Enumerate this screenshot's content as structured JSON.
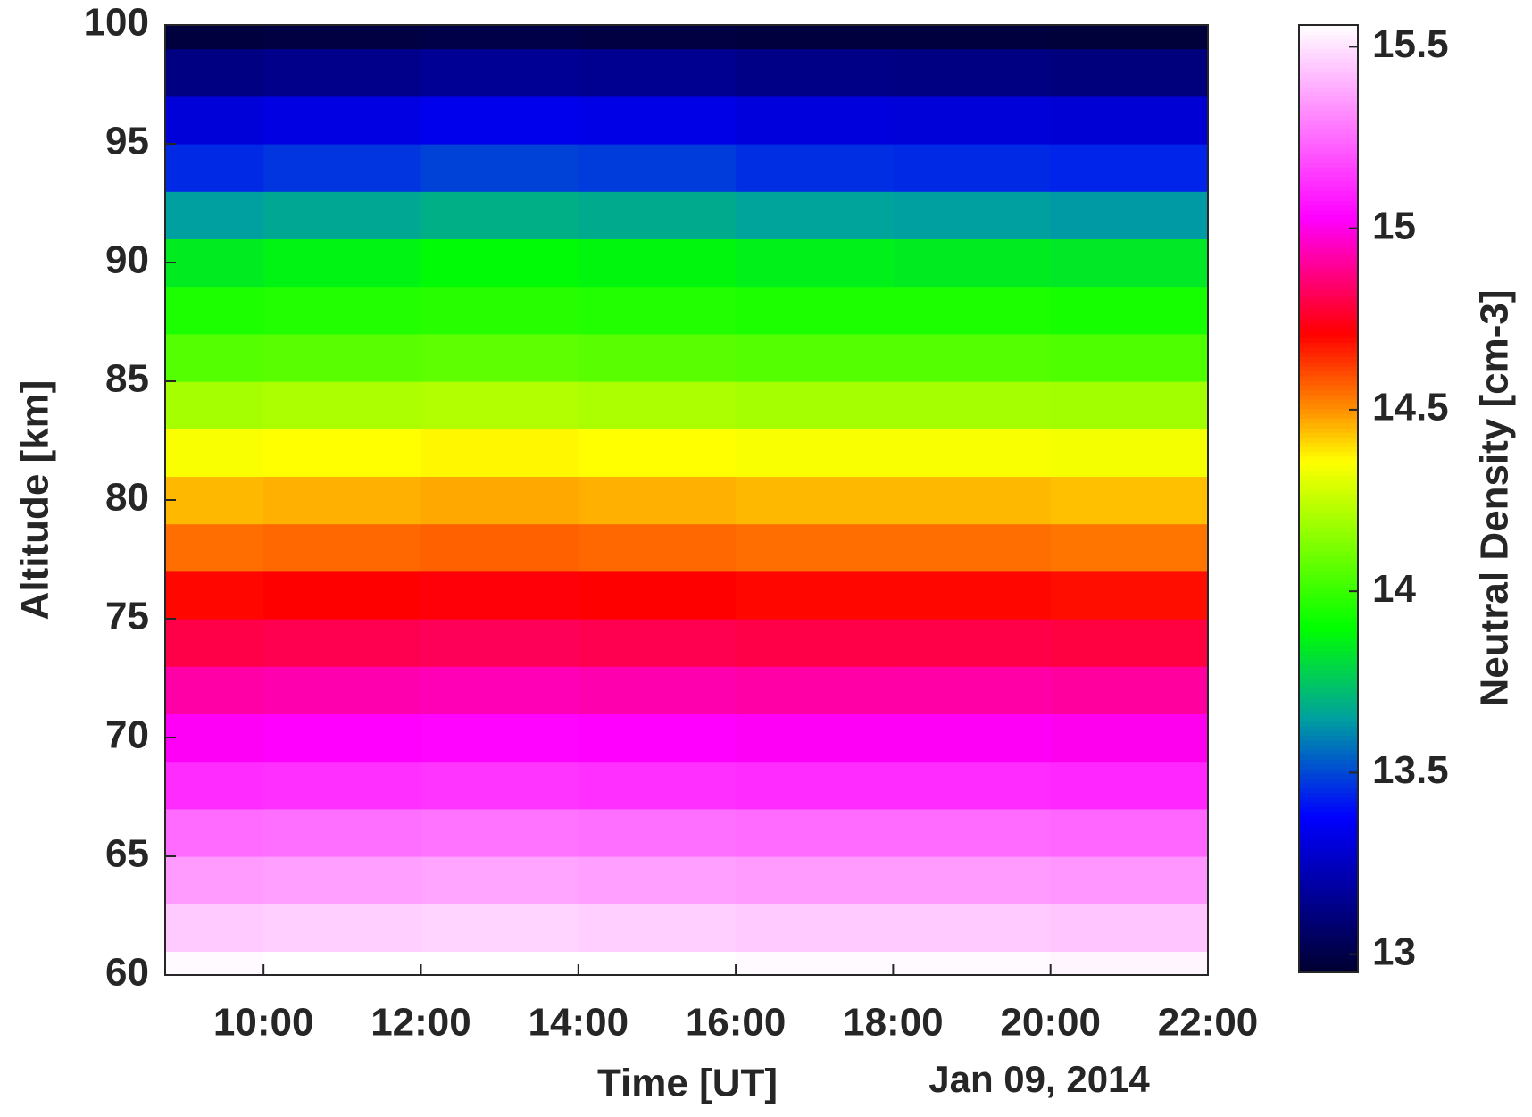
{
  "chart_data": {
    "type": "heatmap",
    "xlabel": "Time [UT]",
    "ylabel": "Altitude [km]",
    "annotation": "Jan 09, 2014",
    "colorbar_label": "Neutral Density [cm-3]",
    "x": [
      9,
      11,
      13,
      15,
      17,
      19,
      21
    ],
    "y": [
      60,
      62,
      64,
      66,
      68,
      70,
      72,
      74,
      76,
      78,
      80,
      82,
      84,
      86,
      88,
      90,
      92,
      94,
      96,
      98,
      100
    ],
    "z": [
      [
        15.55,
        15.56,
        15.57,
        15.56,
        15.55,
        15.55,
        15.54
      ],
      [
        15.45,
        15.46,
        15.47,
        15.46,
        15.45,
        15.45,
        15.44
      ],
      [
        15.35,
        15.36,
        15.37,
        15.36,
        15.35,
        15.35,
        15.34
      ],
      [
        15.25,
        15.26,
        15.27,
        15.26,
        15.25,
        15.25,
        15.24
      ],
      [
        15.12,
        15.13,
        15.14,
        15.13,
        15.12,
        15.12,
        15.11
      ],
      [
        15.02,
        15.03,
        15.04,
        15.03,
        15.02,
        15.02,
        15.01
      ],
      [
        14.92,
        14.93,
        14.94,
        14.93,
        14.92,
        14.92,
        14.91
      ],
      [
        14.8,
        14.81,
        14.82,
        14.81,
        14.8,
        14.8,
        14.79
      ],
      [
        14.7,
        14.71,
        14.72,
        14.71,
        14.7,
        14.7,
        14.69
      ],
      [
        14.55,
        14.56,
        14.57,
        14.56,
        14.55,
        14.55,
        14.54
      ],
      [
        14.45,
        14.46,
        14.47,
        14.46,
        14.45,
        14.45,
        14.44
      ],
      [
        14.35,
        14.36,
        14.37,
        14.36,
        14.35,
        14.35,
        14.34
      ],
      [
        14.2,
        14.21,
        14.22,
        14.21,
        14.2,
        14.2,
        14.19
      ],
      [
        14.05,
        14.06,
        14.07,
        14.06,
        14.05,
        14.05,
        14.04
      ],
      [
        13.95,
        13.96,
        13.97,
        13.96,
        13.95,
        13.95,
        13.94
      ],
      [
        13.85,
        13.87,
        13.89,
        13.88,
        13.86,
        13.85,
        13.84
      ],
      [
        13.65,
        13.67,
        13.69,
        13.68,
        13.66,
        13.65,
        13.64
      ],
      [
        13.45,
        13.47,
        13.49,
        13.48,
        13.46,
        13.45,
        13.44
      ],
      [
        13.3,
        13.32,
        13.34,
        13.33,
        13.31,
        13.3,
        13.29
      ],
      [
        13.12,
        13.14,
        13.16,
        13.15,
        13.13,
        13.12,
        13.11
      ],
      [
        12.98,
        12.99,
        13.0,
        12.99,
        12.98,
        12.98,
        12.97
      ]
    ],
    "xlim": [
      8.75,
      22
    ],
    "xticks": [
      {
        "value": 10,
        "label": "10:00"
      },
      {
        "value": 12,
        "label": "12:00"
      },
      {
        "value": 14,
        "label": "14:00"
      },
      {
        "value": 16,
        "label": "16:00"
      },
      {
        "value": 18,
        "label": "18:00"
      },
      {
        "value": 20,
        "label": "20:00"
      },
      {
        "value": 22,
        "label": "22:00"
      }
    ],
    "ylim": [
      60,
      100
    ],
    "yticks": [
      60,
      65,
      70,
      75,
      80,
      85,
      90,
      95,
      100
    ],
    "clim": [
      12.95,
      15.56
    ],
    "cticks": [
      13,
      13.5,
      14,
      14.5,
      15,
      15.5
    ],
    "colormap": [
      {
        "value": 12.95,
        "color": "#000030"
      },
      {
        "value": 13.38,
        "color": "#0000ff"
      },
      {
        "value": 13.65,
        "color": "#00a0a0"
      },
      {
        "value": 13.9,
        "color": "#00ff00"
      },
      {
        "value": 14.36,
        "color": "#ffff00"
      },
      {
        "value": 14.5,
        "color": "#ff9000"
      },
      {
        "value": 14.71,
        "color": "#ff0000"
      },
      {
        "value": 15.03,
        "color": "#ff00ff"
      },
      {
        "value": 15.56,
        "color": "#ffffff"
      }
    ]
  }
}
